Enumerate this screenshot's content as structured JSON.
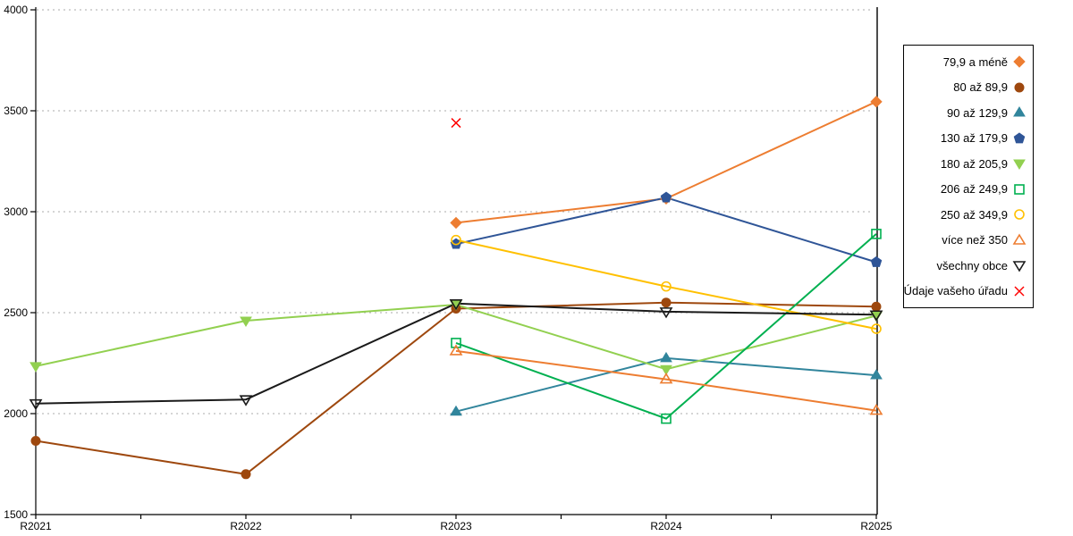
{
  "chart_data": {
    "type": "line",
    "x_categories": [
      "R2021",
      "R2022",
      "R2023",
      "R2024",
      "R2025"
    ],
    "ylim": [
      1500,
      4000
    ],
    "yticks": [
      1500,
      2000,
      2500,
      3000,
      3500,
      4000
    ],
    "grid": "horizontal-dotted",
    "gridline_color": "#ababab",
    "axis_color": "#000000",
    "legend_position": "right",
    "highlight_column": "R2025",
    "series": [
      {
        "name": "79,9 a méně",
        "color": "#ED7D31",
        "marker": "diamond",
        "fill": "filled",
        "line": true,
        "values": [
          null,
          null,
          2945,
          3065,
          3545
        ]
      },
      {
        "name": "80 až 89,9",
        "color": "#9E480E",
        "marker": "circle",
        "fill": "filled",
        "line": true,
        "values": [
          1865,
          1700,
          2520,
          2550,
          2530
        ]
      },
      {
        "name": "90 až 129,9",
        "color": "#31859C",
        "marker": "triangle-up",
        "fill": "filled",
        "line": true,
        "values": [
          null,
          null,
          2010,
          2275,
          2190
        ]
      },
      {
        "name": "130 až 179,9",
        "color": "#2F5597",
        "marker": "pentagon",
        "fill": "filled",
        "line": true,
        "values": [
          null,
          null,
          2840,
          3070,
          2750
        ]
      },
      {
        "name": "180 až 205,9",
        "color": "#92D050",
        "marker": "triangle-down",
        "fill": "filled",
        "line": true,
        "values": [
          2235,
          2460,
          2540,
          2220,
          2485
        ]
      },
      {
        "name": "206 až 249,9",
        "color": "#00B050",
        "marker": "square",
        "fill": "hollow",
        "line": true,
        "values": [
          null,
          null,
          2350,
          1975,
          2890
        ]
      },
      {
        "name": "250 až 349,9",
        "color": "#FFC000",
        "marker": "circle",
        "fill": "hollow",
        "line": true,
        "values": [
          null,
          null,
          2860,
          2630,
          2420
        ]
      },
      {
        "name": "více než 350",
        "color": "#ED7D31",
        "marker": "triangle-up",
        "fill": "hollow",
        "line": true,
        "values": [
          null,
          null,
          2310,
          2170,
          2015
        ]
      },
      {
        "name": "všechny obce",
        "color": "#1a1a1a",
        "marker": "triangle-down",
        "fill": "hollow",
        "line": true,
        "values": [
          2050,
          2070,
          2545,
          2505,
          2490
        ]
      },
      {
        "name": "Údaje vašeho úřadu",
        "color": "#FF0000",
        "marker": "x",
        "fill": "hollow",
        "line": false,
        "values": [
          null,
          null,
          3440,
          null,
          null
        ]
      }
    ]
  }
}
